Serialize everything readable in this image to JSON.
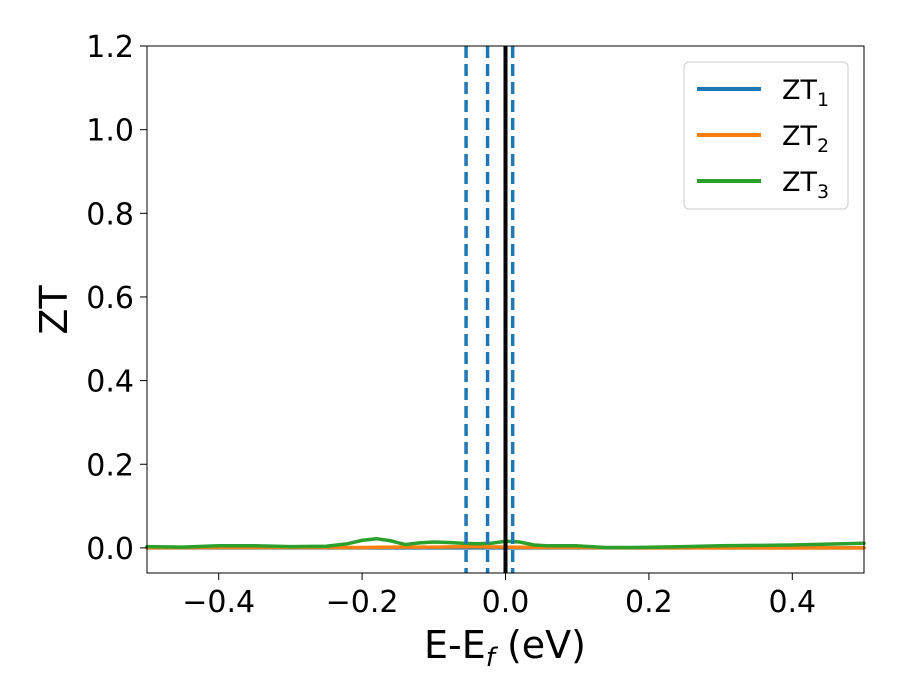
{
  "chart_data": {
    "type": "line",
    "xlabel": {
      "main": "E-E",
      "sub": "f",
      "suffix": " (eV)"
    },
    "ylabel": "ZT",
    "xlim": [
      -0.5,
      0.5
    ],
    "ylim": [
      -0.06,
      1.2
    ],
    "xticks": [
      -0.4,
      -0.2,
      0.0,
      0.2,
      0.4
    ],
    "xtick_labels": [
      "−0.4",
      "−0.2",
      "0.0",
      "0.2",
      "0.4"
    ],
    "yticks": [
      0.0,
      0.2,
      0.4,
      0.6,
      0.8,
      1.0,
      1.2
    ],
    "ytick_labels": [
      "0.0",
      "0.2",
      "0.4",
      "0.6",
      "0.8",
      "1.0",
      "1.2"
    ],
    "legend_position": "top-right",
    "series": [
      {
        "name": "ZT",
        "sub": "1",
        "color": "#1f77b4",
        "x": [
          -0.5,
          -0.4,
          -0.3,
          -0.2,
          -0.1,
          0.0,
          0.1,
          0.2,
          0.3,
          0.4,
          0.5
        ],
        "y": [
          0.0,
          0.0,
          0.0,
          0.0,
          0.0,
          0.0,
          0.0,
          0.0,
          0.0,
          0.0,
          0.0
        ]
      },
      {
        "name": "ZT",
        "sub": "2",
        "color": "#ff7f0e",
        "x": [
          -0.5,
          -0.4,
          -0.3,
          -0.2,
          -0.15,
          -0.1,
          -0.05,
          0.0,
          0.05,
          0.1,
          0.2,
          0.3,
          0.4,
          0.5
        ],
        "y": [
          0.0,
          0.001,
          0.001,
          0.001,
          0.002,
          0.002,
          0.003,
          0.002,
          0.001,
          0.001,
          0.0,
          0.0,
          0.0,
          0.0
        ]
      },
      {
        "name": "ZT",
        "sub": "3",
        "color": "#2ca02c",
        "x": [
          -0.5,
          -0.45,
          -0.4,
          -0.35,
          -0.3,
          -0.25,
          -0.22,
          -0.2,
          -0.18,
          -0.16,
          -0.14,
          -0.12,
          -0.1,
          -0.08,
          -0.06,
          -0.04,
          -0.02,
          0.0,
          0.02,
          0.04,
          0.06,
          0.1,
          0.14,
          0.18,
          0.25,
          0.3,
          0.35,
          0.4,
          0.45,
          0.5
        ],
        "y": [
          0.003,
          0.002,
          0.005,
          0.005,
          0.003,
          0.004,
          0.01,
          0.018,
          0.022,
          0.017,
          0.008,
          0.012,
          0.014,
          0.013,
          0.011,
          0.01,
          0.011,
          0.016,
          0.014,
          0.007,
          0.005,
          0.005,
          0.001,
          0.001,
          0.003,
          0.005,
          0.006,
          0.007,
          0.009,
          0.011
        ]
      }
    ],
    "vertical_lines": [
      {
        "x": -0.055,
        "style": "dashed",
        "color": "#1f77b4"
      },
      {
        "x": -0.025,
        "style": "dashed",
        "color": "#1f77b4"
      },
      {
        "x": 0.01,
        "style": "dashed",
        "color": "#1f77b4"
      },
      {
        "x": 0.0,
        "style": "solid",
        "color": "#000000"
      }
    ]
  }
}
